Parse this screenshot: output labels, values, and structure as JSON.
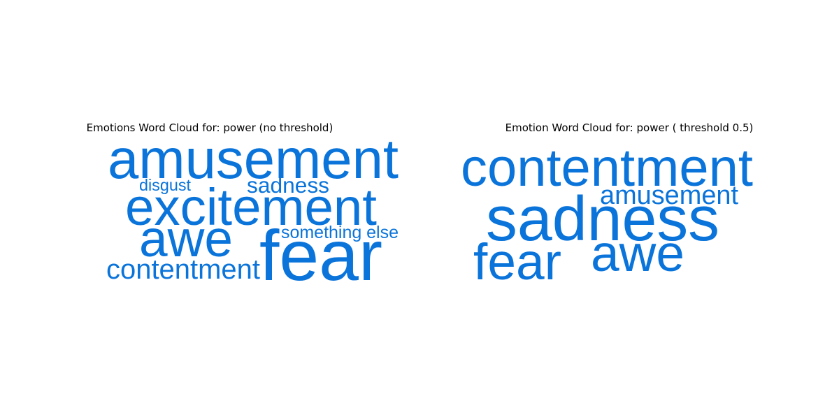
{
  "chart_data": [
    {
      "type": "wordcloud",
      "title": "Emotions Word Cloud for: power (no threshold)",
      "color": "#0a74da",
      "words": [
        {
          "text": "amusement",
          "weight": 1.0
        },
        {
          "text": "fear",
          "weight": 0.98
        },
        {
          "text": "excitement",
          "weight": 0.78
        },
        {
          "text": "awe",
          "weight": 0.78
        },
        {
          "text": "contentment",
          "weight": 0.4
        },
        {
          "text": "sadness",
          "weight": 0.3
        },
        {
          "text": "something else",
          "weight": 0.27
        },
        {
          "text": "disgust",
          "weight": 0.24
        }
      ]
    },
    {
      "type": "wordcloud",
      "title": "Emotion Word Cloud for: power ( threshold 0.5)",
      "color": "#0a74da",
      "words": [
        {
          "text": "sadness",
          "weight": 1.0
        },
        {
          "text": "contentment",
          "weight": 0.86
        },
        {
          "text": "fear",
          "weight": 0.82
        },
        {
          "text": "awe",
          "weight": 0.75
        },
        {
          "text": "amusement",
          "weight": 0.42
        }
      ]
    }
  ]
}
